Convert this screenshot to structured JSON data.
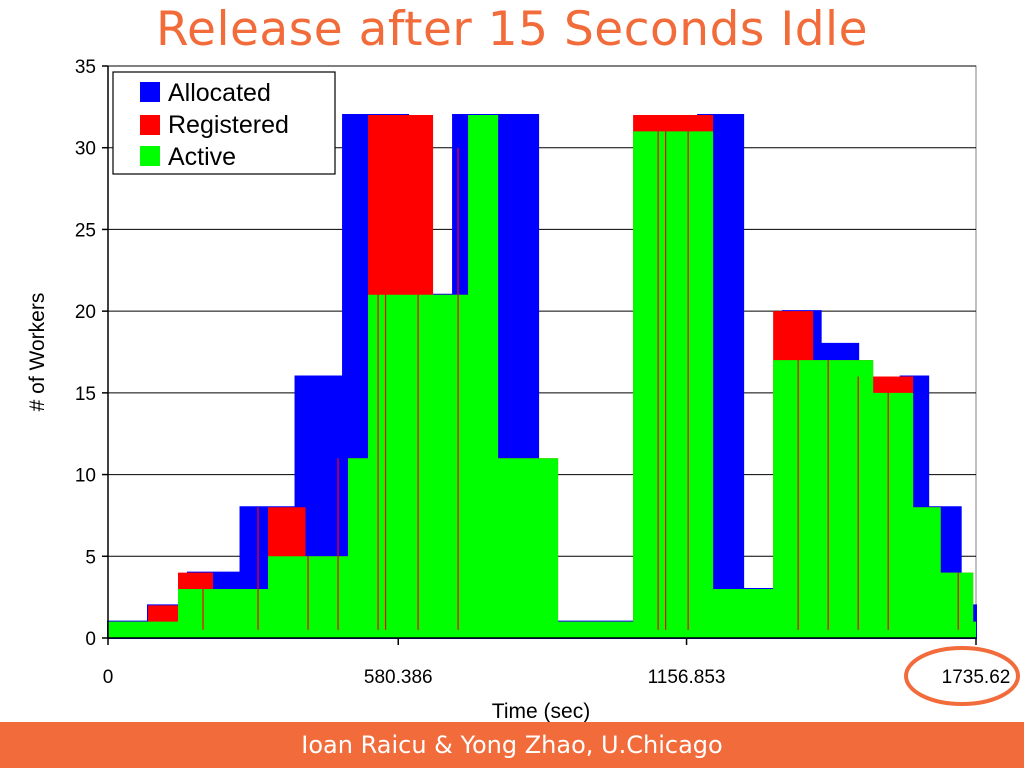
{
  "slide": {
    "title": "Release after 15 Seconds Idle",
    "footer": "Ioan Raicu & Yong Zhao, U.Chicago"
  },
  "colors": {
    "title": "#f26b3a",
    "footer_bg": "#f26b3a",
    "allocated": "#0000ff",
    "registered": "#ff0000",
    "active": "#00ff00",
    "highlight_circle": "#f26b3a"
  },
  "chart_data": {
    "type": "area",
    "title": "",
    "xlabel": "Time (sec)",
    "ylabel": "# of Workers",
    "xlim": [
      0,
      1735.62
    ],
    "ylim": [
      0,
      35
    ],
    "x_ticks": [
      0,
      580.386,
      1156.853,
      1735.62
    ],
    "x_tick_labels": [
      "0",
      "580.386",
      "1156.853",
      "1735.62"
    ],
    "y_ticks": [
      0,
      5,
      10,
      15,
      20,
      25,
      30,
      35
    ],
    "grid": "horizontal",
    "legend_position": "top-left",
    "highlighted_tick": "1735.62",
    "series": [
      {
        "name": "Allocated",
        "color": "#0000ff",
        "x": [
          0,
          80,
          160,
          265,
          375,
          470,
          600,
          690,
          860,
          1180,
          1270,
          1350,
          1425,
          1500,
          1585,
          1640,
          1705,
          1735.62
        ],
        "y": [
          1,
          2,
          4,
          8,
          16,
          32,
          21,
          32,
          1,
          32,
          3,
          20,
          18,
          1,
          16,
          8,
          2,
          0
        ]
      },
      {
        "name": "Registered",
        "color": "#ff0000",
        "x": [
          0,
          20,
          80,
          140,
          210,
          320,
          395,
          480,
          520,
          650,
          720,
          780,
          900,
          1050,
          1135,
          1210,
          1330,
          1410,
          1480,
          1530,
          1610,
          1665,
          1730,
          1735.62
        ],
        "y": [
          1,
          1,
          2,
          4,
          3,
          8,
          5,
          11,
          32,
          21,
          32,
          11,
          1,
          32,
          32,
          3,
          20,
          17,
          17,
          16,
          8,
          4,
          1,
          0
        ]
      },
      {
        "name": "Active",
        "color": "#00ff00",
        "x": [
          0,
          20,
          80,
          140,
          210,
          320,
          395,
          480,
          520,
          650,
          720,
          780,
          900,
          1050,
          1135,
          1210,
          1330,
          1410,
          1480,
          1530,
          1610,
          1665,
          1730,
          1735.62
        ],
        "y": [
          1,
          1,
          2,
          4,
          3,
          8,
          5,
          11,
          32,
          21,
          32,
          11,
          1,
          32,
          32,
          3,
          20,
          17,
          17,
          16,
          8,
          4,
          1,
          0
        ],
        "active_levels": [
          1,
          1,
          1,
          3,
          3,
          5,
          5,
          11,
          21,
          21,
          32,
          11,
          1,
          31,
          31,
          3,
          17,
          17,
          17,
          15,
          8,
          4,
          1,
          0
        ]
      }
    ]
  }
}
